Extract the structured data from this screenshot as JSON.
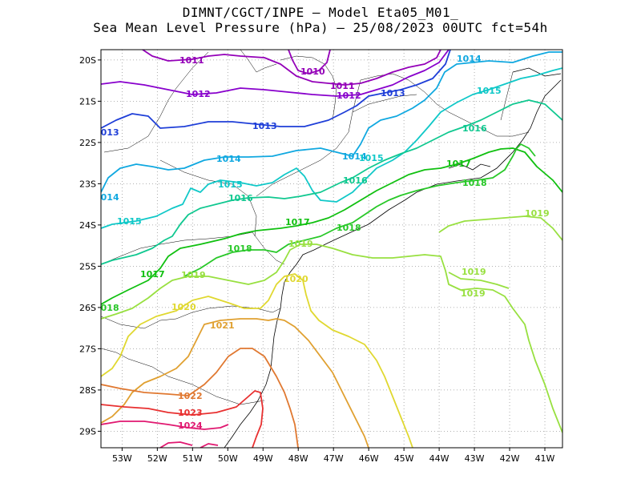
{
  "title_line1": "DIMNT/CGCT/INPE –  Model Eta05_M01_",
  "title_line2": "Sea Mean Level Pressure (hPa) – 25/08/2023 00UTC fct=54h",
  "map": {
    "lon_range": [
      -53.6,
      -40.5
    ],
    "lat_range": [
      -29.4,
      -19.75
    ],
    "grid": "dotted",
    "lon_ticks": [
      "53W",
      "52W",
      "51W",
      "50W",
      "49W",
      "48W",
      "47W",
      "46W",
      "45W",
      "44W",
      "43W",
      "42W",
      "41W"
    ],
    "lat_ticks": [
      "20S",
      "21S",
      "22S",
      "23S",
      "24S",
      "25S",
      "26S",
      "27S",
      "28S",
      "29S"
    ]
  },
  "contours": [
    {
      "name": "isobar-1010",
      "level": "1010",
      "color": "#9400b8"
    },
    {
      "name": "isobar-1011",
      "level": "1011",
      "color": "#9400b8"
    },
    {
      "name": "isobar-1012",
      "level": "1012",
      "color": "#8800cc"
    },
    {
      "name": "isobar-1013",
      "level": "1013",
      "color": "#1f3fd8"
    },
    {
      "name": "isobar-1014",
      "level": "1014",
      "color": "#10a8e0"
    },
    {
      "name": "isobar-1015",
      "level": "1015",
      "color": "#10c8c8"
    },
    {
      "name": "isobar-1016",
      "level": "1016",
      "color": "#10c890"
    },
    {
      "name": "isobar-1017",
      "level": "1017",
      "color": "#10c010"
    },
    {
      "name": "isobar-1018",
      "level": "1018",
      "color": "#28c828"
    },
    {
      "name": "isobar-1019",
      "level": "1019",
      "color": "#98e040"
    },
    {
      "name": "isobar-1020",
      "level": "1020",
      "color": "#e0d830"
    },
    {
      "name": "isobar-1021",
      "level": "1021",
      "color": "#e0a030"
    },
    {
      "name": "isobar-1022",
      "level": "1022",
      "color": "#e07830"
    },
    {
      "name": "isobar-1023",
      "level": "1023",
      "color": "#e83030"
    },
    {
      "name": "isobar-1024",
      "level": "1024",
      "color": "#e01870"
    }
  ]
}
